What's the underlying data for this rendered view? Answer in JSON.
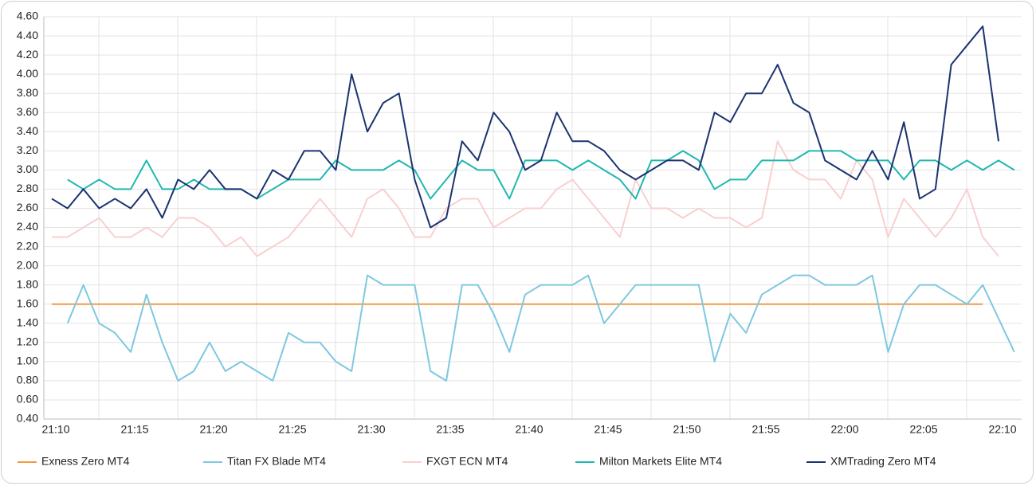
{
  "chart_data": {
    "type": "line",
    "categories": [
      "21:10",
      null,
      null,
      null,
      null,
      "21:15",
      null,
      null,
      null,
      null,
      "21:20",
      null,
      null,
      null,
      null,
      "21:25",
      null,
      null,
      null,
      null,
      "21:30",
      null,
      null,
      null,
      null,
      "21:35",
      null,
      null,
      null,
      null,
      "21:40",
      null,
      null,
      null,
      null,
      "21:45",
      null,
      null,
      null,
      null,
      "21:50",
      null,
      null,
      null,
      null,
      "21:55",
      null,
      null,
      null,
      null,
      "22:00",
      null,
      null,
      null,
      null,
      "22:05",
      null,
      null,
      null,
      null,
      "22:10",
      null
    ],
    "series": [
      {
        "name": "Exness Zero MT4",
        "color": "#f29b45",
        "values": [
          1.6,
          1.6,
          1.6,
          1.6,
          1.6,
          1.6,
          1.6,
          1.6,
          1.6,
          1.6,
          1.6,
          1.6,
          1.6,
          1.6,
          1.6,
          1.6,
          1.6,
          1.6,
          1.6,
          1.6,
          1.6,
          1.6,
          1.6,
          1.6,
          1.6,
          1.6,
          1.6,
          1.6,
          1.6,
          1.6,
          1.6,
          1.6,
          1.6,
          1.6,
          1.6,
          1.6,
          1.6,
          1.6,
          1.6,
          1.6,
          1.6,
          1.6,
          1.6,
          1.6,
          1.6,
          1.6,
          1.6,
          1.6,
          1.6,
          1.6,
          1.6,
          1.6,
          1.6,
          1.6,
          1.6,
          1.6,
          1.6,
          1.6,
          1.6,
          1.6,
          null,
          null
        ]
      },
      {
        "name": "Titan FX Blade MT4",
        "color": "#7ec8e0",
        "values": [
          null,
          1.4,
          1.8,
          1.4,
          1.3,
          1.1,
          1.7,
          1.2,
          0.8,
          0.9,
          1.2,
          0.9,
          1.0,
          0.9,
          0.8,
          1.3,
          1.2,
          1.2,
          1.0,
          0.9,
          1.9,
          1.8,
          1.8,
          1.8,
          0.9,
          0.8,
          1.8,
          1.8,
          1.5,
          1.1,
          1.7,
          1.8,
          1.8,
          1.8,
          1.9,
          1.4,
          1.6,
          1.8,
          1.8,
          1.8,
          1.8,
          1.8,
          1.0,
          1.5,
          1.3,
          1.7,
          1.8,
          1.9,
          1.9,
          1.8,
          1.8,
          1.8,
          1.9,
          1.1,
          1.6,
          1.8,
          1.8,
          1.7,
          1.6,
          1.8,
          1.45,
          1.1
        ]
      },
      {
        "name": "FXGT ECN MT4",
        "color": "#f9cfcf",
        "values": [
          2.3,
          2.3,
          2.4,
          2.5,
          2.3,
          2.3,
          2.4,
          2.3,
          2.5,
          2.5,
          2.4,
          2.2,
          2.3,
          2.1,
          2.2,
          2.3,
          2.5,
          2.7,
          2.5,
          2.3,
          2.7,
          2.8,
          2.6,
          2.3,
          2.3,
          2.6,
          2.7,
          2.7,
          2.4,
          2.5,
          2.6,
          2.6,
          2.8,
          2.9,
          2.7,
          2.5,
          2.3,
          2.9,
          2.6,
          2.6,
          2.5,
          2.6,
          2.5,
          2.5,
          2.4,
          2.5,
          3.3,
          3.0,
          2.9,
          2.9,
          2.7,
          3.1,
          2.9,
          2.3,
          2.7,
          2.5,
          2.3,
          2.5,
          2.8,
          2.3,
          2.1,
          null
        ]
      },
      {
        "name": "Milton Markets Elite MT4",
        "color": "#1fb8b0",
        "values": [
          null,
          2.9,
          2.8,
          2.9,
          2.8,
          2.8,
          3.1,
          2.8,
          2.8,
          2.9,
          2.8,
          2.8,
          2.8,
          2.7,
          2.8,
          2.9,
          2.9,
          2.9,
          3.1,
          3.0,
          3.0,
          3.0,
          3.1,
          3.0,
          2.7,
          2.9,
          3.1,
          3.0,
          3.0,
          2.7,
          3.1,
          3.1,
          3.1,
          3.0,
          3.1,
          3.0,
          2.9,
          2.7,
          3.1,
          3.1,
          3.2,
          3.1,
          2.8,
          2.9,
          2.9,
          3.1,
          3.1,
          3.1,
          3.2,
          3.2,
          3.2,
          3.1,
          3.1,
          3.1,
          2.9,
          3.1,
          3.1,
          3.0,
          3.1,
          3.0,
          3.1,
          3.0
        ]
      },
      {
        "name": "XMTrading Zero MT4",
        "color": "#1c3370",
        "values": [
          2.7,
          2.6,
          2.8,
          2.6,
          2.7,
          2.6,
          2.8,
          2.5,
          2.9,
          2.8,
          3.0,
          2.8,
          2.8,
          2.7,
          3.0,
          2.9,
          3.2,
          3.2,
          3.0,
          4.0,
          3.4,
          3.7,
          3.8,
          2.9,
          2.4,
          2.5,
          3.3,
          3.1,
          3.6,
          3.4,
          3.0,
          3.1,
          3.6,
          3.3,
          3.3,
          3.2,
          3.0,
          2.9,
          3.0,
          3.1,
          3.1,
          3.0,
          3.6,
          3.5,
          3.8,
          3.8,
          4.1,
          3.7,
          3.6,
          3.1,
          3.0,
          2.9,
          3.2,
          2.9,
          3.5,
          2.7,
          2.8,
          4.1,
          4.3,
          4.5,
          3.3,
          null
        ]
      }
    ],
    "ylim": [
      0.4,
      4.6
    ],
    "yticks": [
      {
        "value": 0.4,
        "label": "0.40"
      },
      {
        "value": 0.6,
        "label": "0.60"
      },
      {
        "value": 0.8,
        "label": "0.80"
      },
      {
        "value": 1.0,
        "label": "1.00"
      },
      {
        "value": 1.2,
        "label": "1.20"
      },
      {
        "value": 1.4,
        "label": "1.40"
      },
      {
        "value": 1.6,
        "label": "1.60"
      },
      {
        "value": 1.8,
        "label": "1.80"
      },
      {
        "value": 2.0,
        "label": "2.00"
      },
      {
        "value": 2.2,
        "label": "2.20"
      },
      {
        "value": 2.4,
        "label": "2.40"
      },
      {
        "value": 2.6,
        "label": "2.60"
      },
      {
        "value": 2.8,
        "label": "2.80"
      },
      {
        "value": 3.0,
        "label": "3.00"
      },
      {
        "value": 3.2,
        "label": "3.20"
      },
      {
        "value": 3.4,
        "label": "3.40"
      },
      {
        "value": 3.6,
        "label": "3.60"
      },
      {
        "value": 3.8,
        "label": "3.80"
      },
      {
        "value": 4.0,
        "label": "4.00"
      },
      {
        "value": 4.2,
        "label": "4.20"
      },
      {
        "value": 4.4,
        "label": "4.40"
      },
      {
        "value": 4.6,
        "label": "4.60"
      }
    ],
    "grid": true,
    "legend": "bottom"
  }
}
